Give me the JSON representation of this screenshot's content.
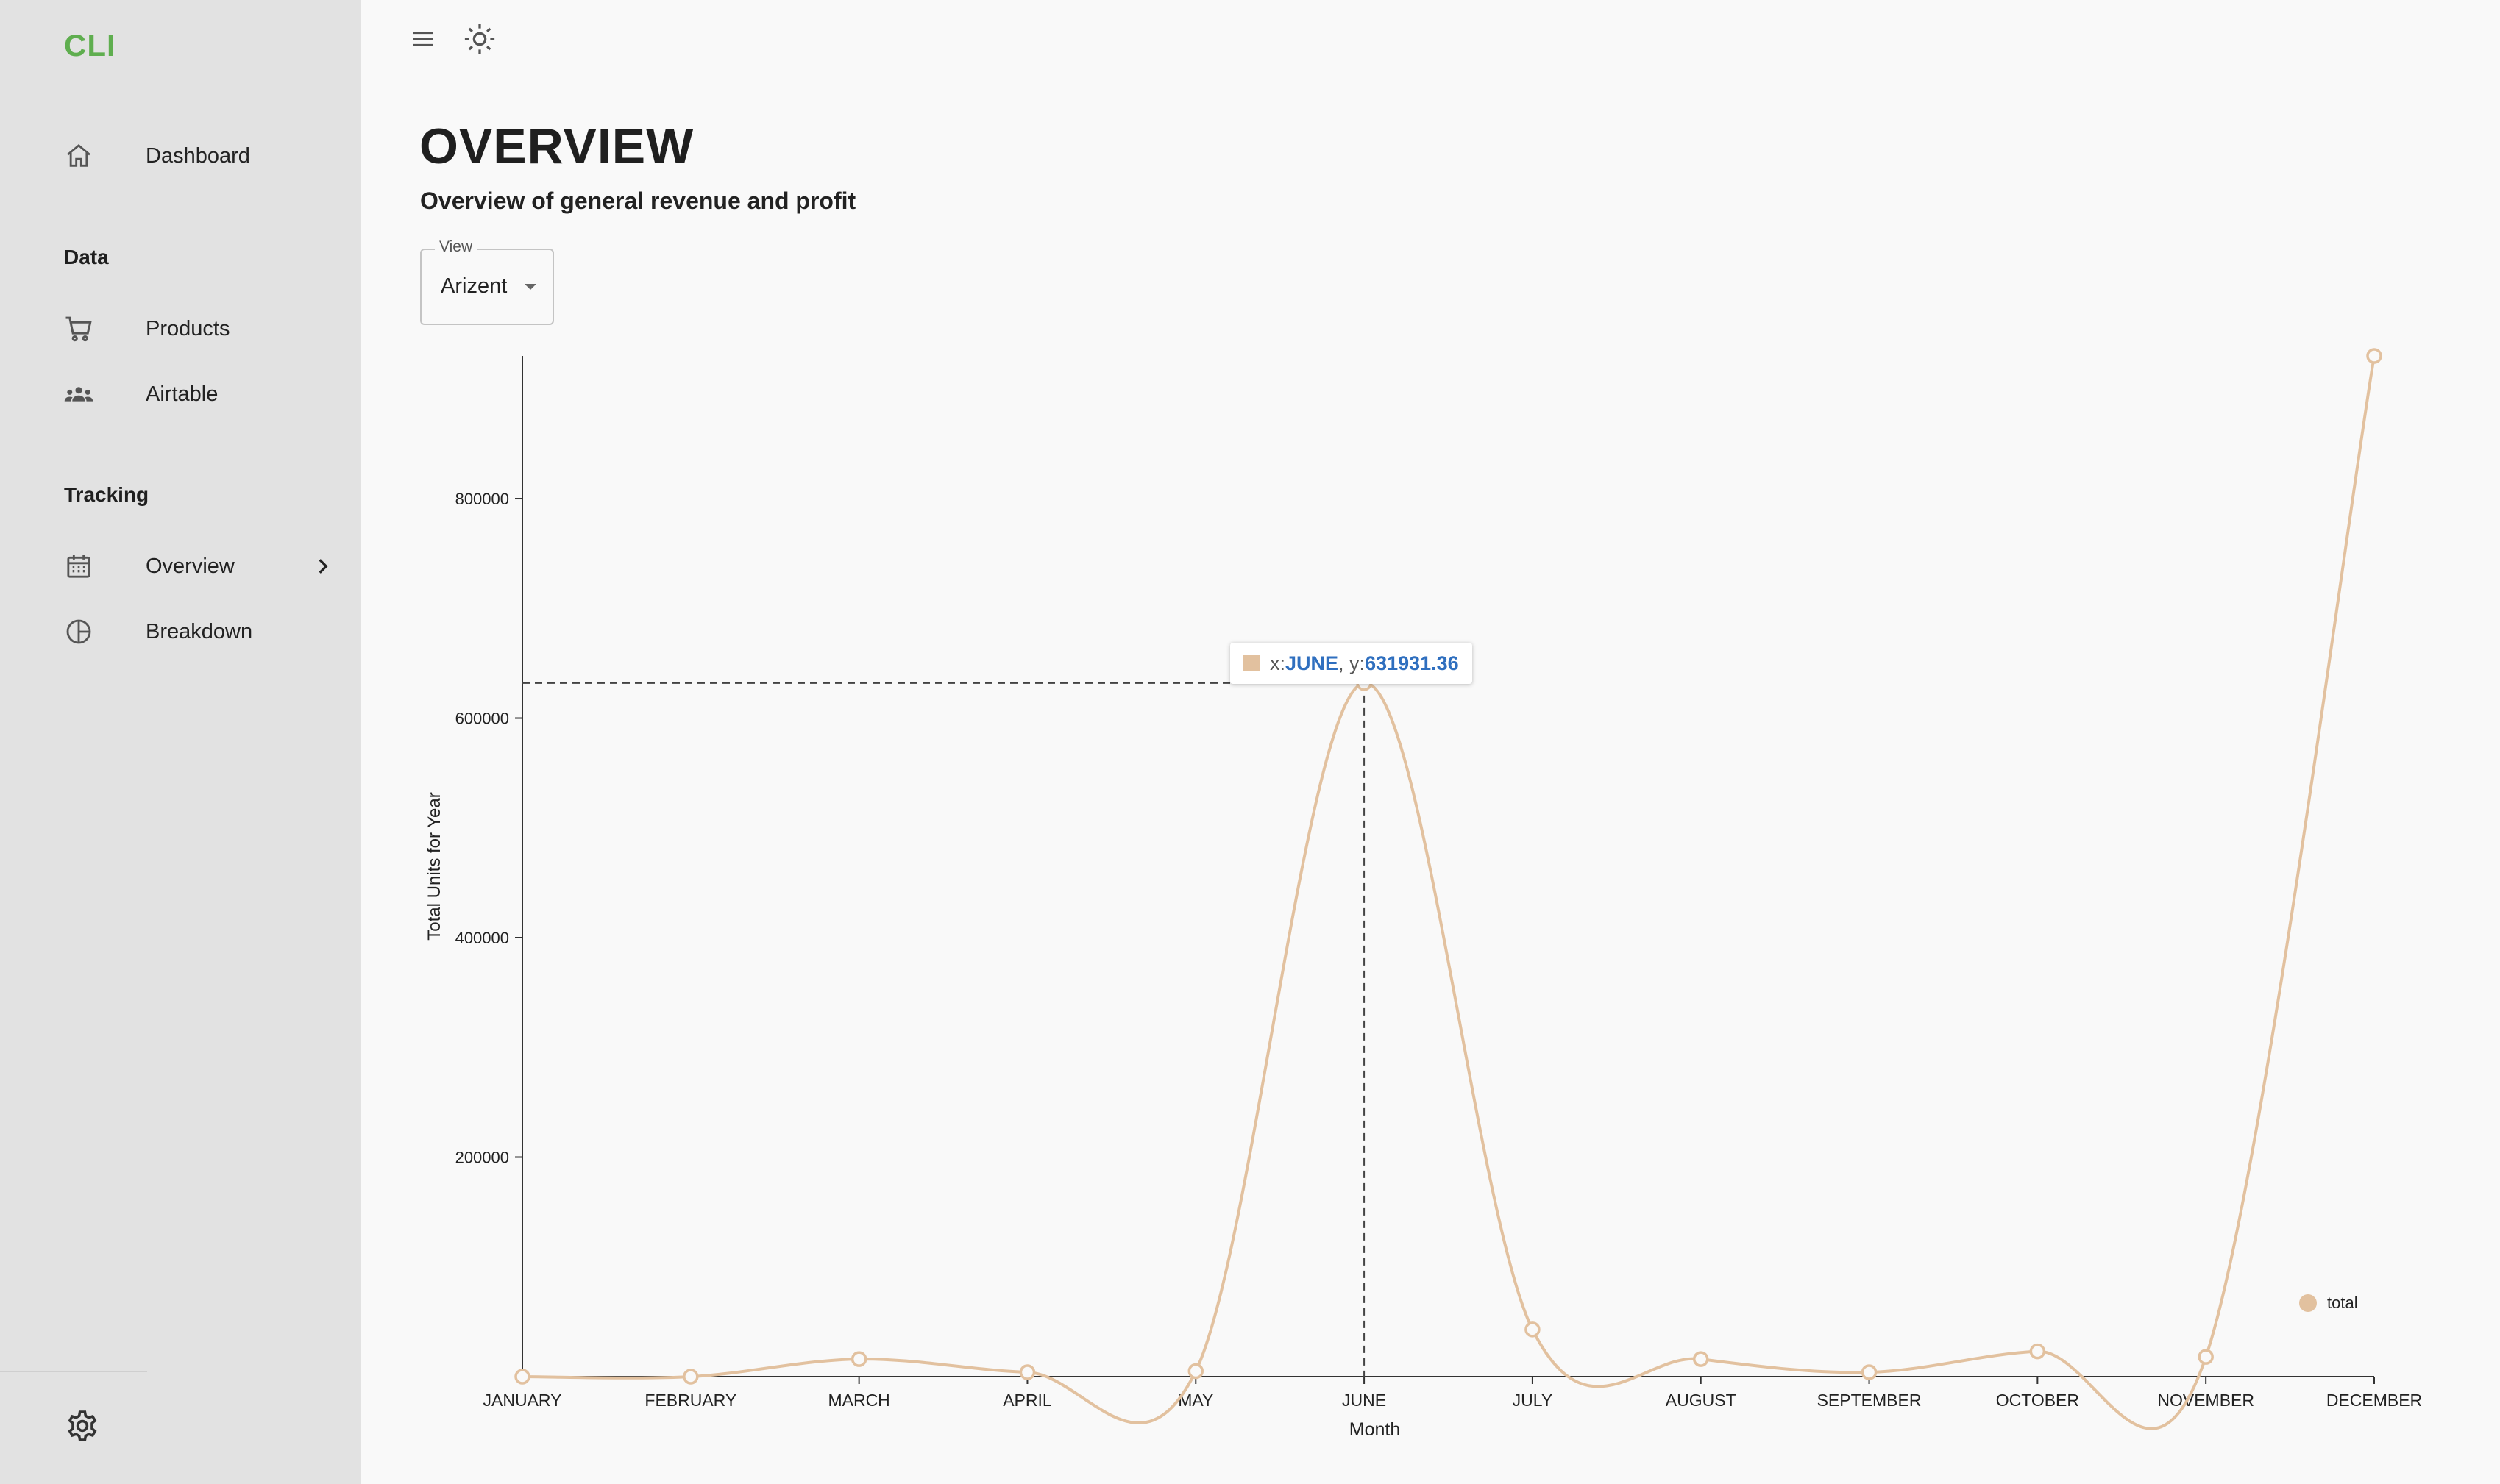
{
  "app": {
    "brand": "CLI"
  },
  "sidebar": {
    "items": [
      {
        "name": "dashboard",
        "label": "Dashboard"
      },
      {
        "name": "products",
        "label": "Products"
      },
      {
        "name": "airtable",
        "label": "Airtable"
      },
      {
        "name": "overview",
        "label": "Overview"
      },
      {
        "name": "breakdown",
        "label": "Breakdown"
      }
    ],
    "sections": {
      "data": "Data",
      "tracking": "Tracking"
    },
    "active_item": "Overview"
  },
  "topbar": {
    "menu_icon": "menu-icon",
    "theme_icon": "sun-icon"
  },
  "header": {
    "title": "OVERVIEW",
    "subtitle": "Overview of general revenue and profit"
  },
  "view_select": {
    "label": "View",
    "value": "Arizent"
  },
  "tooltip": {
    "x_prefix": "x: ",
    "x_value": "JUNE",
    "sep": ", y: ",
    "y_value": "631931.36"
  },
  "chart_data": {
    "type": "line",
    "curve": "smooth",
    "categories": [
      "JANUARY",
      "FEBRUARY",
      "MARCH",
      "APRIL",
      "MAY",
      "JUNE",
      "JULY",
      "AUGUST",
      "SEPTEMBER",
      "OCTOBER",
      "NOVEMBER",
      "DECEMBER"
    ],
    "series": [
      {
        "name": "total",
        "values": [
          0,
          0,
          16000,
          4000,
          5000,
          631931.36,
          43000,
          16000,
          4000,
          23000,
          18000,
          930000
        ],
        "color": "#e2c19f"
      }
    ],
    "xlabel": "Month",
    "ylabel": "Total Units for Year",
    "yticks": [
      200000,
      400000,
      600000,
      800000
    ],
    "ylim": [
      0,
      930000
    ],
    "grid": false,
    "legend_position": "bottom-right",
    "highlight": {
      "category": "JUNE",
      "value": 631931.36
    }
  }
}
